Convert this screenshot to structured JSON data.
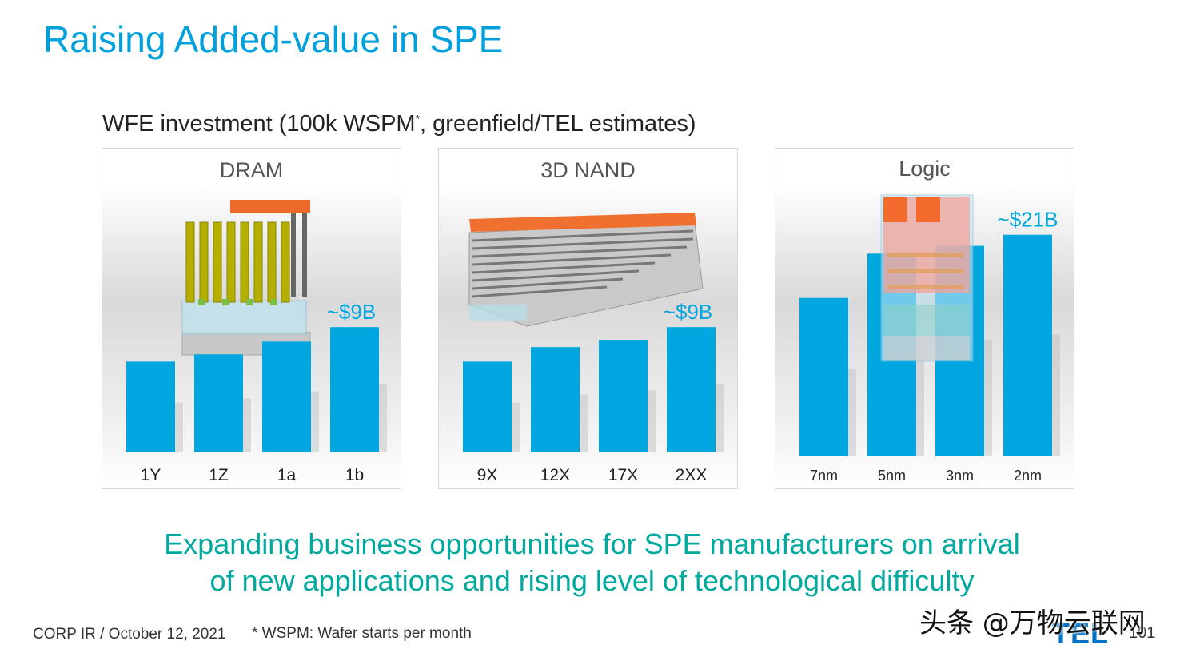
{
  "page": {
    "title": "Raising Added-value in SPE",
    "subtitle_main": "WFE investment (100k WSPM",
    "subtitle_sup": "*",
    "subtitle_rest": ", greenfield/TEL estimates)",
    "conclusion_line1": "Expanding business opportunities for SPE manufacturers on arrival",
    "conclusion_line2": "of new applications and rising level of technological difficulty",
    "footer_left": "CORP IR / October 12, 2021",
    "footnote": "* WSPM: Wafer starts per month",
    "logo_text": "TEL",
    "page_number": "101",
    "watermark": "头条 @万物云联网"
  },
  "colors": {
    "title": "#00a0dc",
    "bar": "#00a6e0",
    "conclusion": "#00a99d"
  },
  "chart_data": [
    {
      "type": "bar",
      "title": "DRAM",
      "categories": [
        "1Y",
        "1Z",
        "1a",
        "1b"
      ],
      "values": [
        5.0,
        5.4,
        6.1,
        6.9
      ],
      "label_last": "~$9B",
      "ylim": [
        0,
        11
      ],
      "grid": false
    },
    {
      "type": "bar",
      "title": "3D NAND",
      "categories": [
        "9X",
        "12X",
        "17X",
        "2XX"
      ],
      "values": [
        5.0,
        5.8,
        6.2,
        6.9
      ],
      "label_last": "~$9B",
      "ylim": [
        0,
        11
      ],
      "grid": false
    },
    {
      "type": "bar",
      "title": "Logic",
      "categories": [
        "7nm",
        "5nm",
        "3nm",
        "2nm"
      ],
      "values": [
        14.3,
        18.3,
        19.0,
        20.0
      ],
      "label_last": "~$21B",
      "ylim": [
        0,
        22
      ],
      "grid": false
    }
  ]
}
